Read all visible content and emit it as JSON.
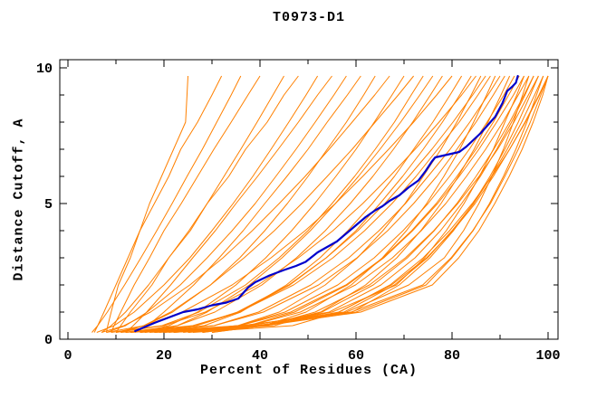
{
  "chart_data": {
    "type": "line",
    "title": "T0973-D1",
    "xlabel": "Percent of Residues (CA)",
    "ylabel": "Distance Cutoff, A",
    "xlim": [
      0,
      100
    ],
    "ylim": [
      0,
      10
    ],
    "x_major_ticks": [
      0,
      20,
      40,
      60,
      80,
      100
    ],
    "x_minor_ticks": [
      10,
      30,
      50,
      70,
      90
    ],
    "y_major_ticks": [
      0,
      5,
      10
    ],
    "y_minor_ticks": [
      1,
      2,
      3,
      4,
      6,
      7,
      8,
      9
    ],
    "grid": false,
    "legend": "none",
    "colors": {
      "model_lines": "#ff8000",
      "highlighted_line": "#0000cc",
      "axis": "#000000",
      "background": "#ffffff"
    },
    "highlighted_model": {
      "name": "highlighted-model",
      "points": [
        [
          14,
          0.3
        ],
        [
          16,
          0.45
        ],
        [
          18,
          0.6
        ],
        [
          21,
          0.8
        ],
        [
          24,
          1.0
        ],
        [
          27,
          1.1
        ],
        [
          30,
          1.25
        ],
        [
          33,
          1.35
        ],
        [
          35.5,
          1.5
        ],
        [
          37.5,
          1.9
        ],
        [
          39,
          2.1
        ],
        [
          42,
          2.35
        ],
        [
          45,
          2.55
        ],
        [
          47.5,
          2.7
        ],
        [
          49.5,
          2.85
        ],
        [
          52,
          3.2
        ],
        [
          54,
          3.4
        ],
        [
          56,
          3.6
        ],
        [
          58,
          3.9
        ],
        [
          60,
          4.2
        ],
        [
          62,
          4.5
        ],
        [
          64,
          4.75
        ],
        [
          65.5,
          4.9
        ],
        [
          67,
          5.1
        ],
        [
          69,
          5.3
        ],
        [
          71,
          5.6
        ],
        [
          73,
          5.85
        ],
        [
          74.5,
          6.2
        ],
        [
          75.8,
          6.55
        ],
        [
          76.5,
          6.7
        ],
        [
          79,
          6.8
        ],
        [
          81.5,
          6.9
        ],
        [
          83,
          7.1
        ],
        [
          84.5,
          7.35
        ],
        [
          86,
          7.6
        ],
        [
          87.5,
          7.9
        ],
        [
          89,
          8.2
        ],
        [
          90.5,
          8.7
        ],
        [
          91.5,
          9.15
        ],
        [
          92.5,
          9.3
        ],
        [
          93.3,
          9.45
        ],
        [
          93.7,
          9.7
        ]
      ]
    },
    "cutoff_levels": [
      0.25,
      0.5,
      1,
      2,
      3,
      4,
      5,
      6,
      7,
      8,
      9,
      9.7
    ],
    "models": [
      {
        "percent_at_cutoff": [
          5.5,
          6.2,
          7.5,
          10,
          12.5,
          15,
          17,
          19.5,
          22,
          24.5,
          24.8,
          25
        ]
      },
      {
        "percent_at_cutoff": [
          8,
          8.3,
          9,
          10.5,
          13,
          15,
          18,
          21,
          23.5,
          27,
          30,
          32
        ]
      },
      {
        "percent_at_cutoff": [
          5,
          6.2,
          8.2,
          11.8,
          15.2,
          18.5,
          21.7,
          24.8,
          28,
          31,
          34,
          36
        ]
      },
      {
        "percent_at_cutoff": [
          9,
          9.6,
          11,
          13.8,
          17,
          20,
          23.6,
          27,
          30.4,
          34,
          37.5,
          40
        ]
      },
      {
        "percent_at_cutoff": [
          7,
          9,
          12,
          16.8,
          21,
          25.2,
          29,
          32.5,
          36,
          39.4,
          42.7,
          45
        ]
      },
      {
        "percent_at_cutoff": [
          10,
          11,
          13,
          17.5,
          21,
          25.5,
          29,
          33.5,
          37,
          41.5,
          45,
          48
        ]
      },
      {
        "percent_at_cutoff": [
          6,
          9.6,
          13.8,
          20,
          25.4,
          30,
          34.4,
          38.5,
          42.3,
          46,
          49.6,
          52
        ]
      },
      {
        "percent_at_cutoff": [
          12,
          13.6,
          16.4,
          21.4,
          26,
          30.7,
          35,
          39.5,
          43.8,
          48,
          52,
          55
        ]
      },
      {
        "percent_at_cutoff": [
          8,
          12,
          16.5,
          23.4,
          29,
          34.2,
          39,
          43.3,
          47.5,
          51.5,
          55.4,
          58
        ]
      },
      {
        "percent_at_cutoff": [
          14,
          16.6,
          20,
          26.2,
          31.5,
          36.5,
          41,
          45.6,
          50,
          54,
          58.2,
          61
        ]
      },
      {
        "percent_at_cutoff": [
          10,
          16,
          21.8,
          29.7,
          35.8,
          41,
          45.7,
          50,
          54,
          58,
          61.6,
          64
        ]
      },
      {
        "percent_at_cutoff": [
          7,
          11.7,
          17.2,
          25.4,
          32.3,
          38.4,
          44,
          49.4,
          54.4,
          59.2,
          63.9,
          67
        ]
      },
      {
        "percent_at_cutoff": [
          15,
          21,
          27,
          35,
          41.2,
          46.6,
          51.4,
          55.8,
          60,
          63.8,
          67.5,
          70
        ]
      },
      {
        "percent_at_cutoff": [
          11,
          15.8,
          21.4,
          29.7,
          36.7,
          43,
          48.7,
          54,
          59.2,
          64,
          68.8,
          72
        ]
      },
      {
        "percent_at_cutoff": [
          9,
          19.6,
          27.3,
          37,
          44,
          50,
          55,
          59.7,
          64,
          68,
          71.5,
          74
        ]
      },
      {
        "percent_at_cutoff": [
          16,
          22.8,
          29,
          37.8,
          44.6,
          50.5,
          55.7,
          60.5,
          65,
          69.3,
          73.3,
          76
        ]
      },
      {
        "percent_at_cutoff": [
          12,
          22.8,
          30.6,
          40.4,
          47.6,
          53.6,
          58.8,
          63.5,
          67.8,
          71.8,
          75.5,
          78
        ]
      },
      {
        "percent_at_cutoff": [
          8,
          16,
          23.8,
          34.2,
          42.3,
          49.4,
          55.7,
          61.4,
          66.8,
          72,
          76.8,
          80
        ]
      },
      {
        "percent_at_cutoff": [
          18,
          28.4,
          36,
          45.5,
          52.5,
          58.3,
          63.4,
          68,
          72,
          76,
          79.6,
          82
        ]
      },
      {
        "percent_at_cutoff": [
          13,
          26.8,
          35.7,
          46.2,
          53.8,
          60,
          65,
          69.7,
          74,
          78,
          81.6,
          84
        ]
      },
      {
        "percent_at_cutoff": [
          10,
          20,
          28.6,
          39.6,
          48,
          55.2,
          61.4,
          67,
          72.3,
          77.3,
          82,
          85
        ]
      },
      {
        "percent_at_cutoff": [
          20,
          35.4,
          44,
          53.6,
          60.3,
          65.6,
          70.2,
          74,
          77.7,
          81,
          84,
          86
        ]
      },
      {
        "percent_at_cutoff": [
          15,
          26.7,
          35.3,
          46,
          53.8,
          60.4,
          66,
          71,
          75.8,
          80.2,
          84.3,
          87
        ]
      },
      {
        "percent_at_cutoff": [
          11,
          26,
          35.6,
          47,
          55.2,
          61.8,
          67.5,
          72.5,
          77,
          81.5,
          85.4,
          88
        ]
      },
      {
        "percent_at_cutoff": [
          22,
          40.8,
          49.6,
          59,
          65.5,
          70.5,
          74.7,
          78.3,
          81.6,
          84.5,
          87.2,
          89
        ]
      },
      {
        "percent_at_cutoff": [
          16,
          30.4,
          39.7,
          50.6,
          58.5,
          64.8,
          70.3,
          75,
          79.6,
          83.7,
          87.5,
          90
        ]
      },
      {
        "percent_at_cutoff": [
          12,
          30.5,
          40.7,
          52.2,
          60.2,
          66.6,
          72,
          76.8,
          81,
          85,
          88.6,
          91
        ]
      },
      {
        "percent_at_cutoff": [
          25,
          41,
          52.6,
          62,
          68.5,
          73.5,
          77.7,
          81.3,
          84.6,
          87.5,
          90.2,
          92
        ]
      },
      {
        "percent_at_cutoff": [
          18,
          35.6,
          45.2,
          56.2,
          63.8,
          69.8,
          75,
          79.5,
          83.6,
          87.3,
          90.8,
          93
        ]
      },
      {
        "percent_at_cutoff": [
          13,
          35.8,
          46.4,
          57.9,
          65.6,
          71.6,
          76.7,
          81,
          85,
          88.6,
          91.8,
          94
        ]
      },
      {
        "percent_at_cutoff": [
          28,
          40,
          55,
          68.4,
          74.3,
          78.8,
          82.5,
          85.7,
          88.6,
          91,
          93.5,
          95
        ]
      },
      {
        "percent_at_cutoff": [
          20,
          37.6,
          47.2,
          58.2,
          65.8,
          71.8,
          77,
          81.5,
          85.6,
          89.3,
          92.8,
          95
        ]
      },
      {
        "percent_at_cutoff": [
          15,
          37.8,
          48.4,
          59.9,
          67.6,
          73.6,
          78.7,
          83,
          87,
          90.6,
          93.8,
          96
        ]
      },
      {
        "percent_at_cutoff": [
          30,
          41,
          58,
          71,
          78.4,
          82.4,
          85.6,
          88.3,
          90.7,
          92.8,
          94.7,
          96
        ]
      },
      {
        "percent_at_cutoff": [
          22,
          43,
          52.9,
          63.6,
          70.7,
          76.3,
          81,
          85,
          88.7,
          92,
          95,
          97
        ]
      },
      {
        "percent_at_cutoff": [
          17,
          38,
          54.4,
          65.2,
          72.3,
          77.6,
          82,
          85.9,
          89.3,
          92.4,
          95.2,
          97
        ]
      },
      {
        "percent_at_cutoff": [
          25,
          40,
          59.2,
          69,
          75.4,
          80.3,
          84.4,
          87.9,
          91,
          93.8,
          96.3,
          98
        ]
      },
      {
        "percent_at_cutoff": [
          19,
          41.2,
          51.5,
          62.8,
          70.3,
          76.2,
          81.2,
          85.6,
          89.5,
          92.9,
          95.9,
          98
        ]
      },
      {
        "percent_at_cutoff": [
          28,
          39,
          60,
          74.6,
          80,
          84.4,
          87.8,
          90.7,
          93.3,
          95.6,
          97.6,
          99
        ]
      },
      {
        "percent_at_cutoff": [
          21,
          37,
          57.5,
          68,
          74.9,
          80,
          84.5,
          88.2,
          91.5,
          94.5,
          97.2,
          99
        ]
      },
      {
        "percent_at_cutoff": [
          24,
          36,
          59,
          73.9,
          79.8,
          84.3,
          88,
          91,
          93.8,
          96.3,
          98.5,
          100
        ]
      },
      {
        "percent_at_cutoff": [
          18,
          41,
          56.4,
          67.4,
          74.7,
          80.2,
          84.8,
          88.6,
          92,
          95.2,
          98.1,
          100
        ]
      },
      {
        "percent_at_cutoff": [
          30,
          41,
          61,
          75.9,
          81.4,
          85.6,
          88.9,
          91.9,
          94.6,
          96.9,
          98.9,
          100
        ]
      },
      {
        "percent_at_cutoff": [
          26,
          46.8,
          56.5,
          67.1,
          74,
          79.5,
          84.2,
          88.3,
          92,
          95.3,
          98.2,
          100
        ]
      }
    ]
  }
}
